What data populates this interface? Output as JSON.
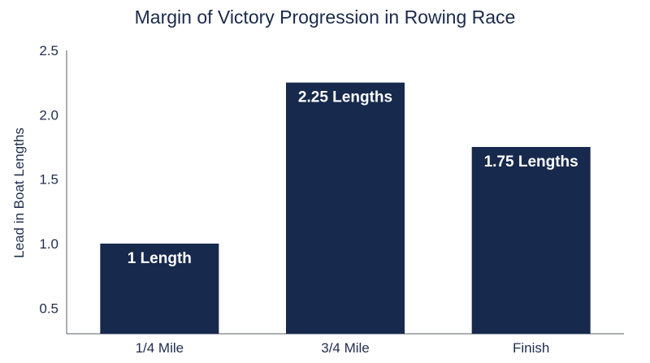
{
  "chart_data": {
    "type": "bar",
    "title": "Margin of Victory Progression in Rowing Race",
    "xlabel": "",
    "ylabel": "Lead in Boat Lengths",
    "categories": [
      "1/4 Mile",
      "3/4 Mile",
      "Finish"
    ],
    "values": [
      1.0,
      2.25,
      1.75
    ],
    "data_labels": [
      "1 Length",
      "2.25 Lengths",
      "1.75 Lengths"
    ],
    "ylim": [
      0.3,
      2.5
    ],
    "yticks": [
      0.5,
      1.0,
      1.5,
      2.0,
      2.5
    ],
    "ytick_labels": [
      "0.5",
      "1.0",
      "1.5",
      "2.0",
      "2.5"
    ],
    "grid": false,
    "legend": "none",
    "bar_color": "#17294d"
  }
}
